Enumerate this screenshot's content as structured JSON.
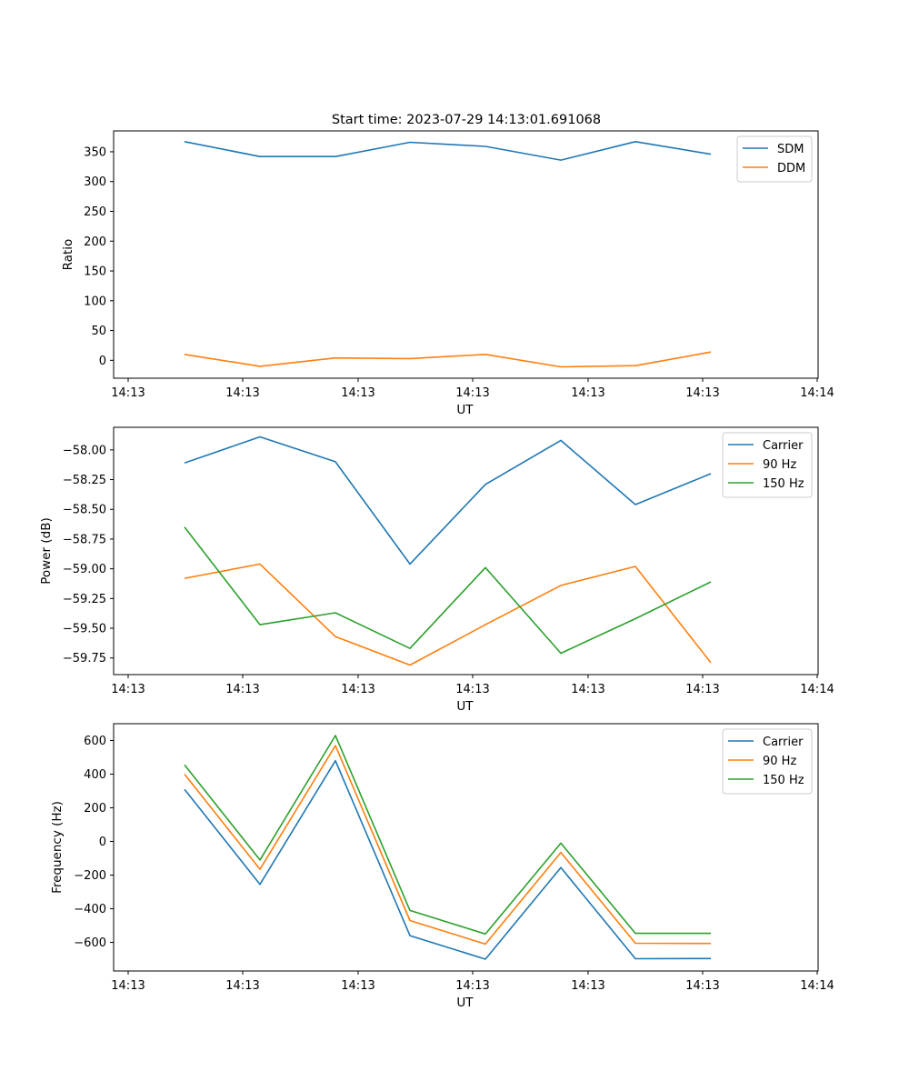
{
  "figure_title": "Start time: 2023-07-29 14:13:01.691068",
  "colors": {
    "c0": "#1f77b4",
    "c1": "#ff7f0e",
    "c2": "#2ca02c"
  },
  "chart_data": [
    {
      "type": "line",
      "title": "Start time: 2023-07-29 14:13:01.691068",
      "xlabel": "UT",
      "ylabel": "Ratio",
      "x_tick_labels": [
        "14:13",
        "14:13",
        "14:13",
        "14:13",
        "14:13",
        "14:13",
        "14:14"
      ],
      "y_ticks": [
        0,
        50,
        100,
        150,
        200,
        250,
        300,
        350
      ],
      "y_tick_labels": [
        "0",
        "50",
        "100",
        "150",
        "200",
        "250",
        "300",
        "350"
      ],
      "ylim": [
        -30,
        385
      ],
      "legend_position": "top-right",
      "series": [
        {
          "name": "SDM",
          "color": "#1f77b4",
          "values": [
            367,
            342,
            342,
            366,
            359,
            336,
            367,
            346
          ]
        },
        {
          "name": "DDM",
          "color": "#ff7f0e",
          "values": [
            10,
            -10,
            4,
            3,
            10,
            -11,
            -9,
            14
          ]
        }
      ]
    },
    {
      "type": "line",
      "title": "",
      "xlabel": "UT",
      "ylabel": "Power (dB)",
      "x_tick_labels": [
        "14:13",
        "14:13",
        "14:13",
        "14:13",
        "14:13",
        "14:13",
        "14:14"
      ],
      "y_ticks": [
        -58.0,
        -58.25,
        -58.5,
        -58.75,
        -59.0,
        -59.25,
        -59.5,
        -59.75
      ],
      "y_tick_labels": [
        "−58.00",
        "−58.25",
        "−58.50",
        "−58.75",
        "−59.00",
        "−59.25",
        "−59.50",
        "−59.75"
      ],
      "ylim": [
        -59.89,
        -57.81
      ],
      "legend_position": "top-right",
      "series": [
        {
          "name": "Carrier",
          "color": "#1f77b4",
          "values": [
            -58.11,
            -57.89,
            -58.1,
            -58.96,
            -58.29,
            -57.92,
            -58.46,
            -58.2
          ]
        },
        {
          "name": "90 Hz",
          "color": "#ff7f0e",
          "values": [
            -59.08,
            -58.96,
            -59.57,
            -59.81,
            -59.47,
            -59.14,
            -58.98,
            -59.79
          ]
        },
        {
          "name": "150 Hz",
          "color": "#2ca02c",
          "values": [
            -58.65,
            -59.47,
            -59.37,
            -59.67,
            -58.99,
            -59.71,
            -59.42,
            -59.11
          ]
        }
      ]
    },
    {
      "type": "line",
      "title": "",
      "xlabel": "UT",
      "ylabel": "Frequency (Hz)",
      "x_tick_labels": [
        "14:13",
        "14:13",
        "14:13",
        "14:13",
        "14:13",
        "14:13",
        "14:14"
      ],
      "y_ticks": [
        600,
        400,
        200,
        0,
        -200,
        -400,
        -600
      ],
      "y_tick_labels": [
        "600",
        "400",
        "200",
        "0",
        "−200",
        "−400",
        "−600"
      ],
      "ylim": [
        -770,
        700
      ],
      "legend_position": "top-right",
      "series": [
        {
          "name": "Carrier",
          "color": "#1f77b4",
          "values": [
            310,
            -255,
            480,
            -560,
            -700,
            -155,
            -697,
            -696
          ]
        },
        {
          "name": "90 Hz",
          "color": "#ff7f0e",
          "values": [
            400,
            -165,
            570,
            -470,
            -610,
            -65,
            -605,
            -606
          ]
        },
        {
          "name": "150 Hz",
          "color": "#2ca02c",
          "values": [
            455,
            -110,
            630,
            -410,
            -550,
            -10,
            -546,
            -546
          ]
        }
      ]
    }
  ]
}
